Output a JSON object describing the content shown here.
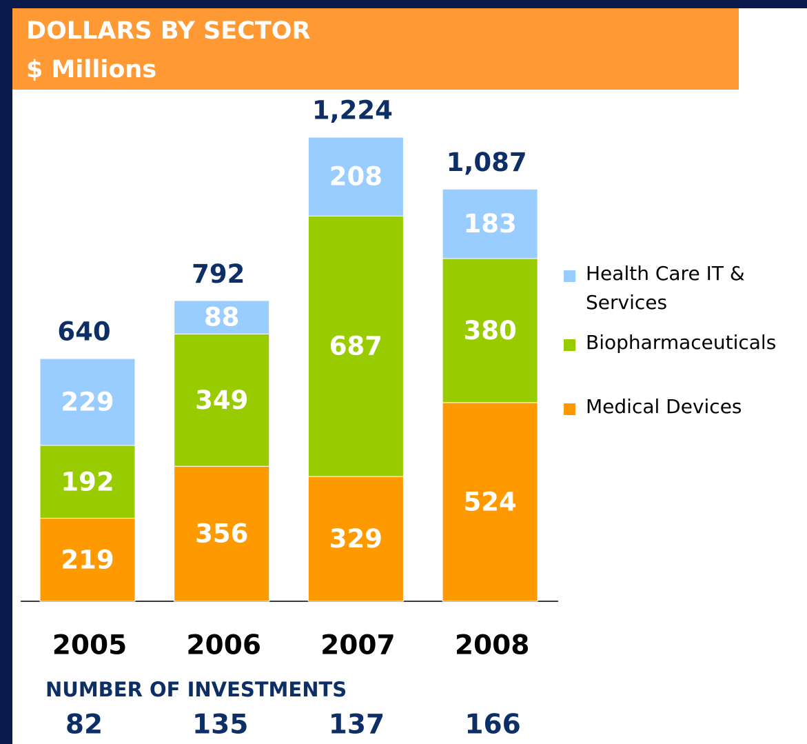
{
  "chart_data": {
    "type": "stacked-bar",
    "title": "DOLLARS BY SECTOR",
    "subtitle": "$ Millions",
    "categories": [
      "2005",
      "2006",
      "2007",
      "2008"
    ],
    "series": [
      {
        "name": "Medical Devices",
        "color": "#ff9900",
        "values": [
          219,
          356,
          329,
          524
        ]
      },
      {
        "name": "Biopharmaceuticals",
        "color": "#99cc00",
        "values": [
          192,
          349,
          687,
          380
        ]
      },
      {
        "name": "Health Care IT & Services",
        "color": "#99ccff",
        "values": [
          229,
          88,
          208,
          183
        ]
      }
    ],
    "totals": [
      640,
      792,
      1224,
      1087
    ],
    "total_labels": [
      "640",
      "792",
      "1,224",
      "1,087"
    ],
    "investments_label": "NUMBER OF INVESTMENTS",
    "investments": [
      82,
      135,
      137,
      166
    ]
  }
}
